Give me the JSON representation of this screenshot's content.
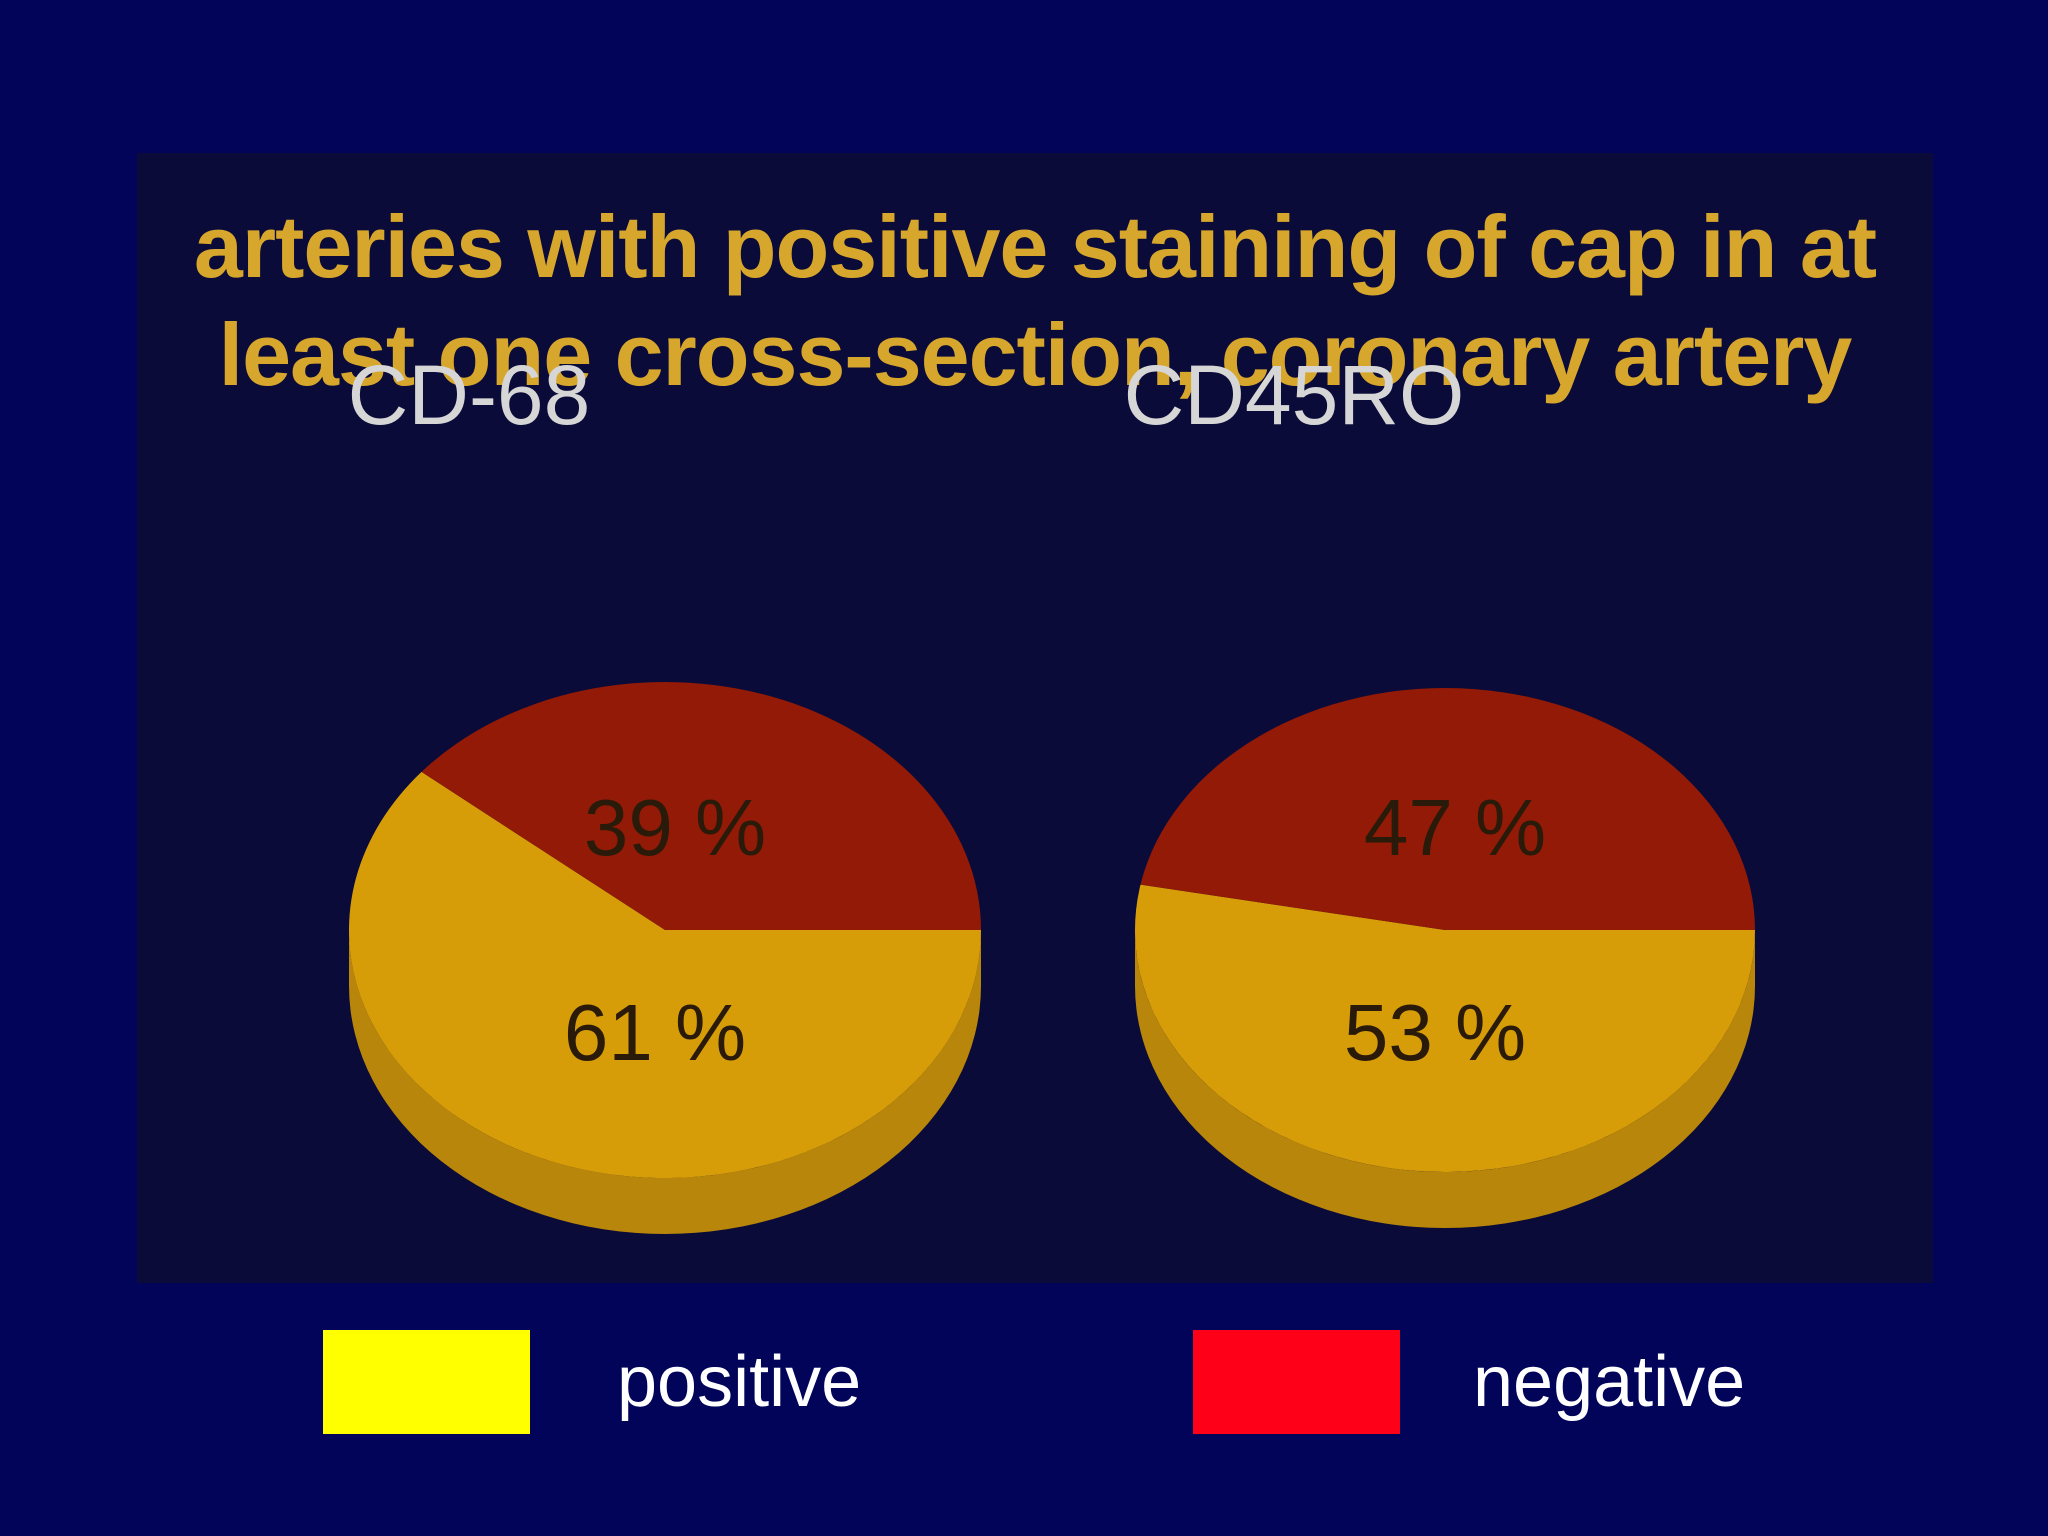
{
  "chart_data": {
    "type": "pie",
    "title_lines": [
      "arteries with positive staining of cap in at",
      "least one cross-section, coronary artery"
    ],
    "pies": [
      {
        "label": "CD-68",
        "slices": [
          {
            "name": "positive",
            "value": 61,
            "label": "61 %"
          },
          {
            "name": "negative",
            "value": 39,
            "label": "39 %"
          }
        ]
      },
      {
        "label": "CD45RO",
        "slices": [
          {
            "name": "positive",
            "value": 53,
            "label": "53 %"
          },
          {
            "name": "negative",
            "value": 47,
            "label": "47 %"
          }
        ]
      }
    ],
    "legend": [
      {
        "label": "positive",
        "color": "#ffff00"
      },
      {
        "label": "negative",
        "color": "#ff0019"
      }
    ],
    "pie_colors": {
      "positive_top": "#d79d09",
      "positive_side": "#b8860a",
      "negative_top": "#921a06",
      "negative_side": "#6e1405"
    }
  }
}
